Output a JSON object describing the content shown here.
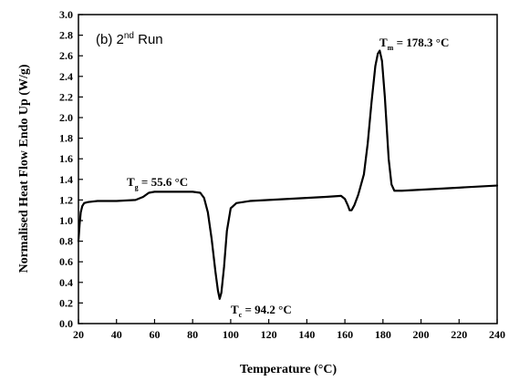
{
  "chart_data": {
    "type": "line",
    "title": "",
    "panel_label": {
      "prefix": "(b) 2",
      "sup": "nd",
      "suffix": " Run"
    },
    "xlabel": "Temperature (°C)",
    "ylabel": "Normalised Heat Flow Endo Up (W/g)",
    "xlim": [
      20,
      240
    ],
    "ylim": [
      0.0,
      3.0
    ],
    "xticks": [
      "20",
      "40",
      "60",
      "80",
      "100",
      "120",
      "140",
      "160",
      "180",
      "200",
      "220",
      "240"
    ],
    "yticks": [
      "0.0",
      "0.2",
      "0.4",
      "0.6",
      "0.8",
      "1.0",
      "1.2",
      "1.4",
      "1.6",
      "1.8",
      "2.0",
      "2.2",
      "2.4",
      "2.6",
      "2.8",
      "3.0"
    ],
    "grid": false,
    "annotations": [
      {
        "main": "T",
        "sub": "g",
        "rest": " = 55.6 °C",
        "x": 55.6,
        "y": 1.28
      },
      {
        "main": "T",
        "sub": "c",
        "rest": " = 94.2 °C",
        "x": 94.2,
        "y": 0.24
      },
      {
        "main": "T",
        "sub": "m",
        "rest": " = 178.3 °C",
        "x": 178.3,
        "y": 2.65
      }
    ],
    "series": [
      {
        "color": "#000000",
        "x": [
          20,
          20.6,
          21.2,
          22,
          23,
          25,
          30,
          40,
          50,
          54,
          57,
          60,
          65,
          70,
          75,
          80,
          84,
          86,
          88,
          90,
          92,
          93.3,
          94.2,
          95.1,
          96.5,
          98,
          100,
          103,
          110,
          120,
          130,
          140,
          150,
          158,
          160,
          161.5,
          162.5,
          163.5,
          165,
          167,
          170,
          172,
          174,
          176,
          177.3,
          178.3,
          179.5,
          181,
          183,
          184.5,
          186,
          190,
          200,
          210,
          220,
          230,
          240
        ],
        "y": [
          0.8,
          0.96,
          1.08,
          1.14,
          1.17,
          1.18,
          1.19,
          1.19,
          1.2,
          1.23,
          1.27,
          1.28,
          1.28,
          1.28,
          1.28,
          1.28,
          1.27,
          1.22,
          1.08,
          0.82,
          0.5,
          0.32,
          0.24,
          0.3,
          0.55,
          0.9,
          1.12,
          1.17,
          1.19,
          1.2,
          1.21,
          1.22,
          1.23,
          1.24,
          1.21,
          1.15,
          1.1,
          1.1,
          1.15,
          1.25,
          1.45,
          1.75,
          2.15,
          2.5,
          2.62,
          2.65,
          2.55,
          2.2,
          1.6,
          1.35,
          1.29,
          1.29,
          1.3,
          1.31,
          1.32,
          1.33,
          1.34
        ]
      }
    ]
  }
}
